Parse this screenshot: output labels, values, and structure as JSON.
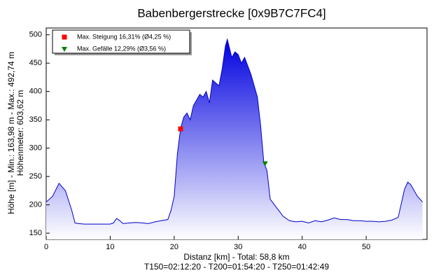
{
  "chart_data": {
    "type": "area",
    "title": "Babenbergerstrecke [0x9B7C7FC4]",
    "y_label": [
      "Höhe [m] - Min.: 163,98 m - Max.: 492,74 m",
      "Höhenmeter: 603,62 m"
    ],
    "x_label": [
      "Distanz [km] - Total: 58,8 km",
      "T150=02:12:20 - T200=01:54:20 - T250=01:42:49"
    ],
    "x": [
      0,
      1,
      2,
      3,
      4,
      4.5,
      5,
      6,
      7,
      8,
      9,
      10,
      10.5,
      11,
      11.5,
      12,
      13,
      14,
      15,
      16,
      17,
      18,
      19,
      19.5,
      20,
      20.5,
      21,
      21.5,
      22,
      22.5,
      23,
      24,
      24.5,
      25,
      25.5,
      26,
      27,
      27.5,
      28,
      28.3,
      29,
      29.5,
      30,
      30.5,
      31,
      32,
      33,
      33.5,
      34,
      34.5,
      35,
      36,
      37,
      38,
      39,
      40,
      41,
      42,
      43,
      44,
      45,
      46,
      47,
      48,
      49,
      50,
      51,
      52,
      53,
      54,
      55,
      56,
      56.5,
      57,
      58,
      58.8
    ],
    "series": [
      {
        "color": "#0000c8",
        "values": [
          205,
          215,
          238,
          225,
          190,
          168,
          167,
          166,
          166,
          166,
          166,
          166,
          168,
          176,
          172,
          167,
          168,
          169,
          168,
          167,
          170,
          172,
          174,
          190,
          215,
          290,
          335,
          355,
          362,
          350,
          375,
          395,
          390,
          400,
          380,
          420,
          410,
          440,
          480,
          492,
          460,
          470,
          465,
          450,
          460,
          430,
          390,
          340,
          275,
          260,
          210,
          195,
          180,
          172,
          170,
          171,
          168,
          172,
          170,
          173,
          177,
          174,
          174,
          172,
          172,
          171,
          171,
          170,
          171,
          173,
          178,
          228,
          240,
          235,
          215,
          205
        ]
      }
    ],
    "markers": [
      {
        "name": "Max. Steigung 16,31% (Ø4,25 %)",
        "x": 21,
        "y": 334,
        "color": "#ff0000",
        "shape": "square"
      },
      {
        "name": "Max. Gefälle 12,29% (Ø3,56 %)",
        "x": 34.2,
        "y": 273,
        "color": "#008000",
        "shape": "triangle"
      }
    ],
    "xlim": [
      0,
      59.5
    ],
    "ylim": [
      139,
      512
    ],
    "xticks": [
      0,
      10,
      20,
      30,
      40,
      50
    ],
    "yticks": [
      150,
      200,
      250,
      300,
      350,
      400,
      450,
      500
    ]
  }
}
